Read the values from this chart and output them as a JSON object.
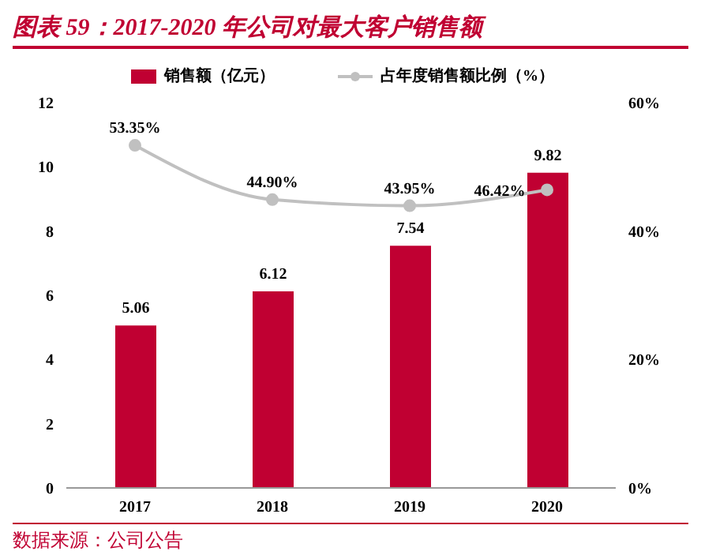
{
  "chart_data": {
    "type": "bar",
    "title": "图表 59：2017-2020 年公司对最大客户销售额",
    "categories": [
      "2017",
      "2018",
      "2019",
      "2020"
    ],
    "series": [
      {
        "name": "销售额（亿元）",
        "color": "#c00032",
        "values": [
          5.06,
          6.12,
          7.54,
          9.82
        ],
        "value_labels": [
          "5.06",
          "6.12",
          "7.54",
          "9.82"
        ]
      },
      {
        "name": "占年度销售额比例（%）",
        "type": "line",
        "axis": "y2",
        "color": "#c0c0c0",
        "values": [
          53.35,
          44.9,
          43.95,
          46.42
        ],
        "value_labels": [
          "53.35%",
          "44.90%",
          "43.95%",
          "46.42%"
        ]
      }
    ],
    "ylim": [
      0,
      12
    ],
    "yticks": [
      0,
      2,
      4,
      6,
      8,
      10,
      12
    ],
    "y2lim": [
      0,
      60
    ],
    "y2ticks": [
      {
        "value": 0,
        "label": "0%"
      },
      {
        "value": 20,
        "label": "20%"
      },
      {
        "value": 40,
        "label": "40%"
      },
      {
        "value": 60,
        "label": "60%"
      }
    ],
    "marker": "circle",
    "line_style": "solid",
    "legend": "top",
    "annotations": [
      "数据来源：公司公告"
    ]
  }
}
